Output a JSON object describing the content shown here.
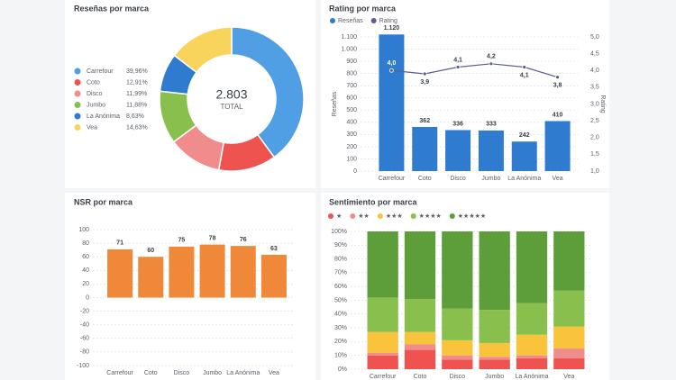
{
  "chart_data": [
    {
      "type": "pie",
      "title": "Reseñas por marca",
      "categories": [
        "Carrefour",
        "Coto",
        "Disco",
        "Jumbo",
        "La Anónima",
        "Vea"
      ],
      "values": [
        39.96,
        12.91,
        11.99,
        11.88,
        8.63,
        14.63
      ],
      "value_labels": [
        "39,96%",
        "12,91%",
        "11,99%",
        "11,88%",
        "8,63%",
        "14,63%"
      ],
      "colors": [
        "#509ee3",
        "#ef5350",
        "#f08c8c",
        "#88bf4d",
        "#2f7bd0",
        "#f9d45c"
      ],
      "total": {
        "value": 2803,
        "label": "2.803"
      },
      "total_label": "TOTAL"
    },
    {
      "type": "bar",
      "title": "Rating por marca",
      "categories": [
        "Carrefour",
        "Coto",
        "Disco",
        "Jumbo",
        "La Anónima",
        "Vea"
      ],
      "series": [
        {
          "name": "Reseñas",
          "type": "bar",
          "color": "#2f7bd0",
          "values": [
            1120,
            362,
            336,
            333,
            242,
            410
          ],
          "value_labels": [
            "1.120",
            "362",
            "336",
            "333",
            "242",
            "410"
          ]
        },
        {
          "name": "Rating",
          "type": "line",
          "axis": "y2",
          "color": "#5d5d8f",
          "values": [
            4.0,
            3.9,
            4.1,
            4.2,
            4.1,
            3.8
          ],
          "value_labels": [
            "4,0",
            "3,9",
            "4,1",
            "4,2",
            "4,1",
            "3,8"
          ]
        }
      ],
      "ylabel": "Reseñas",
      "y2label": "Rating",
      "ylim": [
        0,
        1100
      ],
      "yticks": [
        0,
        100,
        200,
        300,
        400,
        500,
        600,
        700,
        800,
        900,
        {
          "value": 1000,
          "label": "1.000"
        },
        {
          "value": 1100,
          "label": "1.100"
        }
      ],
      "y2lim": [
        1,
        5
      ],
      "y2ticks": [
        {
          "value": 1,
          "label": "1,0"
        },
        {
          "value": 1.5,
          "label": "1,5"
        },
        {
          "value": 2,
          "label": "2,0"
        },
        {
          "value": 2.5,
          "label": "2,5"
        },
        {
          "value": 3,
          "label": "3,0"
        },
        {
          "value": 3.5,
          "label": "3,5"
        },
        {
          "value": 4,
          "label": "4,0"
        },
        {
          "value": 4.5,
          "label": "4,5"
        },
        {
          "value": 5,
          "label": "5,0"
        }
      ],
      "grid": true
    },
    {
      "type": "bar",
      "title": "NSR por marca",
      "categories": [
        "Carrefour",
        "Coto",
        "Disco",
        "Jumbo",
        "La Anónima",
        "Vea"
      ],
      "series": [
        {
          "type": "bar",
          "color": "#f0883a",
          "values": [
            71,
            60,
            75,
            78,
            76,
            63
          ]
        }
      ],
      "ylim": [
        -100,
        100
      ],
      "yticks": [
        -100,
        -80,
        -60,
        -40,
        -20,
        0,
        20,
        40,
        60,
        80,
        100
      ],
      "grid": true
    },
    {
      "type": "bar",
      "title": "Sentimiento por marca",
      "stacked": true,
      "categories": [
        "Carrefour",
        "Coto",
        "Disco",
        "Jumbo",
        "La Anónima",
        "Vea"
      ],
      "series": [
        {
          "name": "★",
          "type": "bar",
          "color": "#ef5350",
          "values": [
            10,
            14,
            7,
            7,
            8,
            8
          ]
        },
        {
          "name": "★★",
          "type": "bar",
          "color": "#f08c8c",
          "values": [
            2,
            4,
            3,
            2,
            2,
            7
          ]
        },
        {
          "name": "★★★",
          "type": "bar",
          "color": "#f9c33c",
          "values": [
            15,
            9,
            11,
            10,
            15,
            16
          ]
        },
        {
          "name": "★★★★",
          "type": "bar",
          "color": "#88bf4d",
          "values": [
            25,
            24,
            23,
            24,
            23,
            26
          ]
        },
        {
          "name": "★★★★★",
          "type": "bar",
          "color": "#5e9e3a",
          "values": [
            48,
            49,
            56,
            57,
            52,
            43
          ]
        }
      ],
      "ylim": [
        0,
        100
      ],
      "yticks": [
        {
          "value": 0,
          "label": "0%"
        },
        {
          "value": 10,
          "label": "10%"
        },
        {
          "value": 20,
          "label": "20%"
        },
        {
          "value": 30,
          "label": "30%"
        },
        {
          "value": 40,
          "label": "40%"
        },
        {
          "value": 50,
          "label": "50%"
        },
        {
          "value": 60,
          "label": "60%"
        },
        {
          "value": 70,
          "label": "70%"
        },
        {
          "value": 80,
          "label": "80%"
        },
        {
          "value": 90,
          "label": "90%"
        },
        {
          "value": 100,
          "label": "100%"
        }
      ],
      "grid": true
    }
  ]
}
